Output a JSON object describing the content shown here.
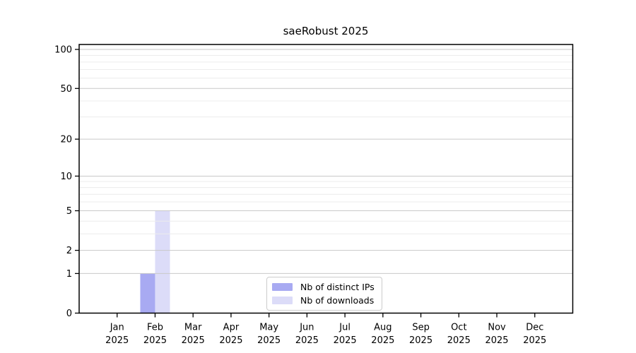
{
  "chart_data": {
    "type": "bar",
    "title": "saeRobust 2025",
    "categories": [
      {
        "month": "Jan",
        "year": "2025"
      },
      {
        "month": "Feb",
        "year": "2025"
      },
      {
        "month": "Mar",
        "year": "2025"
      },
      {
        "month": "Apr",
        "year": "2025"
      },
      {
        "month": "May",
        "year": "2025"
      },
      {
        "month": "Jun",
        "year": "2025"
      },
      {
        "month": "Jul",
        "year": "2025"
      },
      {
        "month": "Aug",
        "year": "2025"
      },
      {
        "month": "Sep",
        "year": "2025"
      },
      {
        "month": "Oct",
        "year": "2025"
      },
      {
        "month": "Nov",
        "year": "2025"
      },
      {
        "month": "Dec",
        "year": "2025"
      }
    ],
    "series": [
      {
        "name": "Nb of distinct IPs",
        "color": "#a8aaf2",
        "values": [
          0,
          1,
          0,
          0,
          0,
          0,
          0,
          0,
          0,
          0,
          0,
          0
        ]
      },
      {
        "name": "Nb of downloads",
        "color": "#dcdcf8",
        "values": [
          0,
          5,
          0,
          0,
          0,
          0,
          0,
          0,
          0,
          0,
          0,
          0
        ]
      }
    ],
    "y_axis": {
      "scale": "log1p",
      "max": 100,
      "major_ticks": [
        0,
        1,
        2,
        5,
        10,
        20,
        50,
        100
      ],
      "minor_ticks": [
        3,
        4,
        6,
        7,
        8,
        9,
        30,
        40,
        60,
        70,
        80,
        90
      ]
    },
    "legend_position": "bottom-center",
    "grid": "on",
    "colors": {
      "major_grid": "#c9c9c9",
      "minor_grid": "#ececec",
      "axis": "#000000",
      "background": "#ffffff"
    }
  }
}
